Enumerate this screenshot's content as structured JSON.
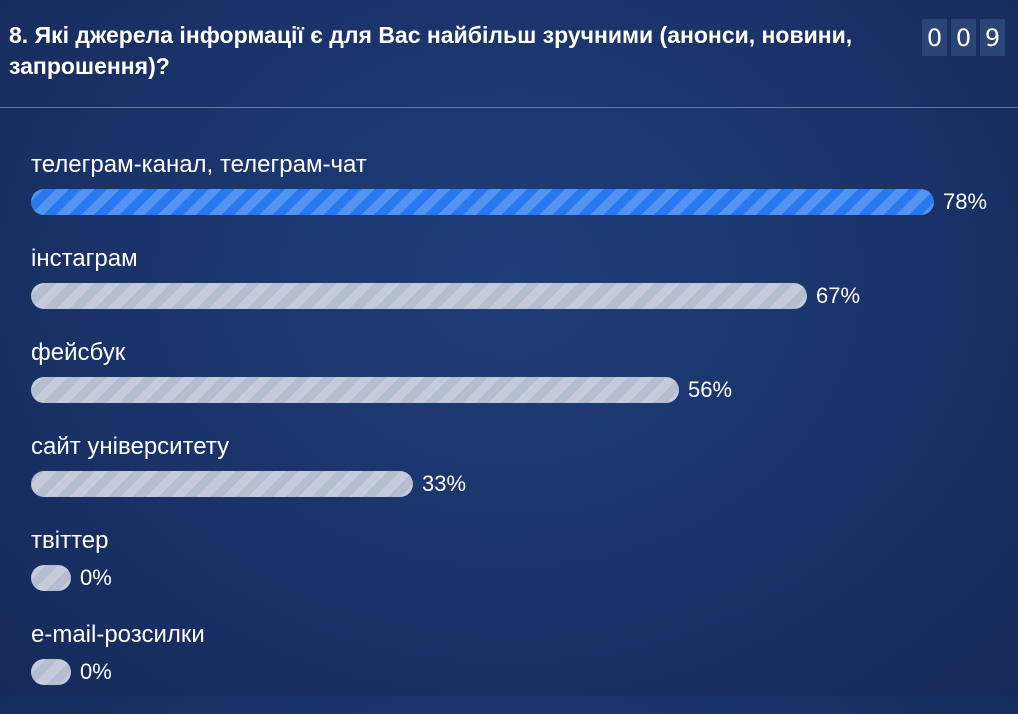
{
  "question": {
    "title": "8. Які джерела інформації є для Вас найбільш зручними (анонси, новини, запрошення)?"
  },
  "counter": {
    "digits": [
      "0",
      "0",
      "9"
    ]
  },
  "colors": {
    "background": "#1b356c",
    "top_bar": "#2878ef",
    "other_bar": "#b5bdd0",
    "counter_tile": "#2b4676"
  },
  "chart_data": {
    "type": "bar",
    "orientation": "horizontal",
    "categories": [
      "телеграм-канал, телеграм-чат",
      "інстаграм",
      "фейсбук",
      "сайт університету",
      "твіттер",
      "e-mail-розсилки"
    ],
    "values": [
      78,
      67,
      56,
      33,
      0,
      0
    ],
    "value_labels": [
      "78%",
      "67%",
      "56%",
      "33%",
      "0%",
      "0%"
    ],
    "unit": "%",
    "xlim": [
      0,
      100
    ],
    "highlight_index": 0
  }
}
